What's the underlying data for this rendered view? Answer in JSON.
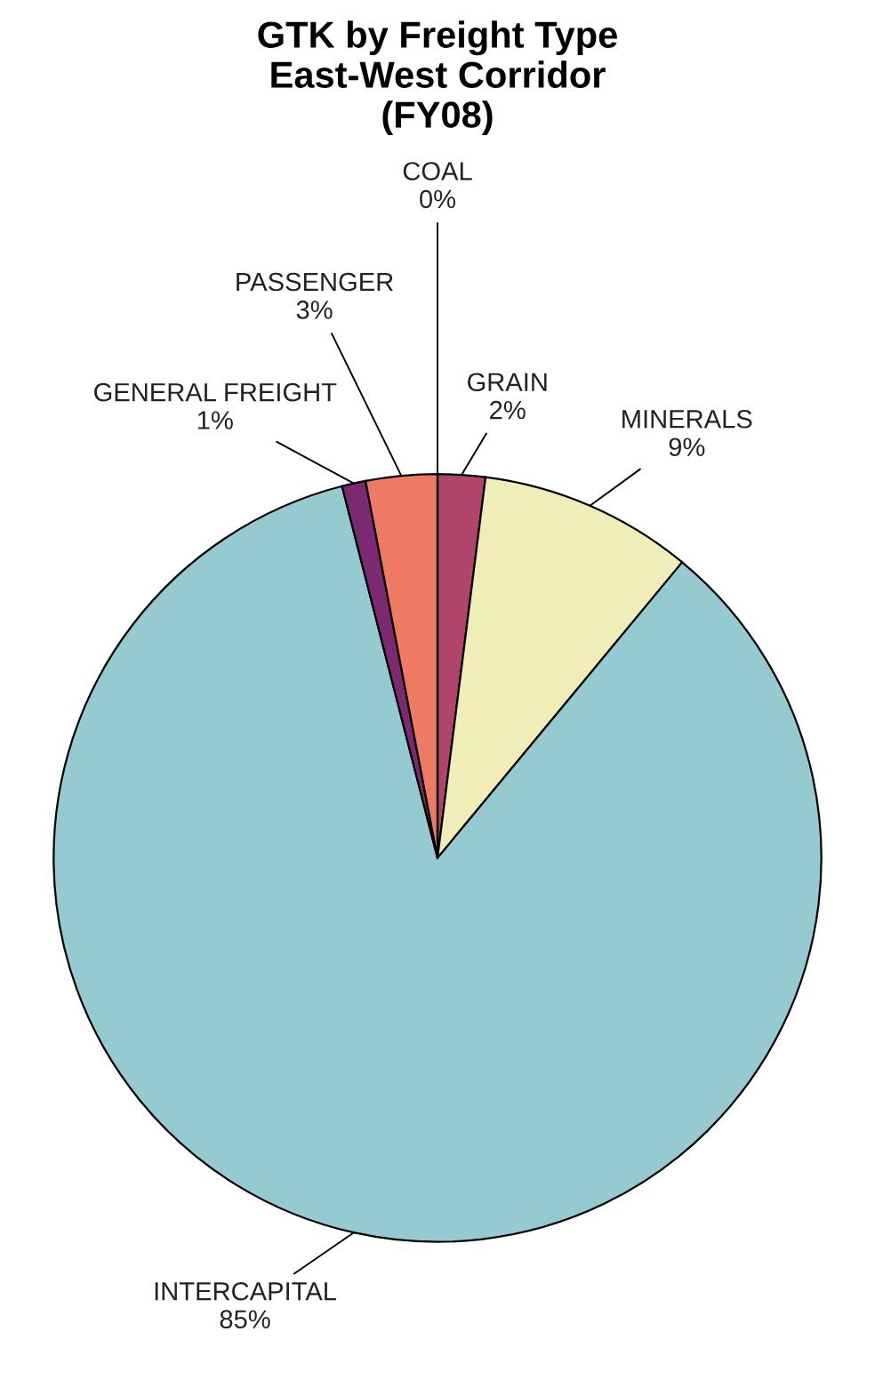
{
  "chart_data": {
    "type": "pie",
    "title": "GTK by Freight Type\nEast-West Corridor\n(FY08)",
    "categories": [
      "GRAIN",
      "MINERALS",
      "INTERCAPITAL",
      "GENERAL FREIGHT",
      "PASSENGER",
      "COAL"
    ],
    "values": [
      2,
      9,
      85,
      1,
      3,
      0
    ],
    "value_labels": [
      "2%",
      "9%",
      "85%",
      "1%",
      "3%",
      "0%"
    ],
    "colors": [
      "#b0446a",
      "#f0edb8",
      "#94cad0",
      "#7b2a72",
      "#ee7a64",
      "#c8c8c8"
    ],
    "legend": false
  }
}
